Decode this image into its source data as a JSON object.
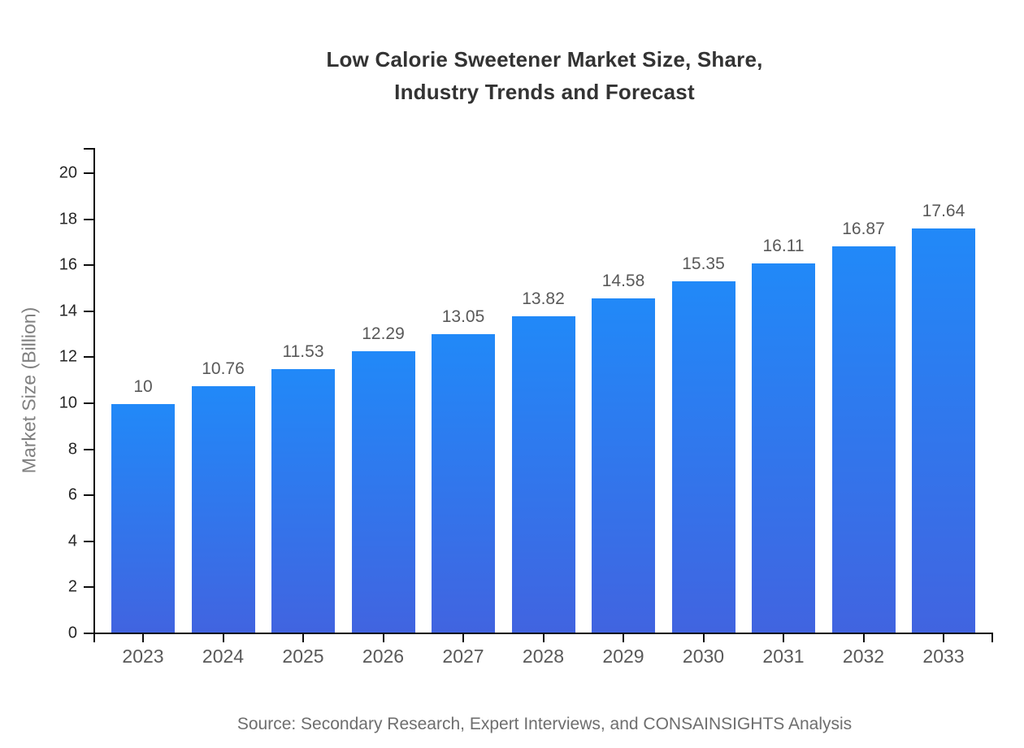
{
  "chart_data": {
    "type": "bar",
    "title": "Low Calorie Sweetener Market Size, Share, Industry Trends and Forecast",
    "title_lines": {
      "line1": "Low Calorie Sweetener Market Size, Share,",
      "line2": "Industry Trends and Forecast"
    },
    "categories": [
      "2023",
      "2024",
      "2025",
      "2026",
      "2027",
      "2028",
      "2029",
      "2030",
      "2031",
      "2032",
      "2033"
    ],
    "values": [
      10,
      10.76,
      11.53,
      12.29,
      13.05,
      13.82,
      14.58,
      15.35,
      16.11,
      16.87,
      17.64
    ],
    "value_labels": [
      "10",
      "10.76",
      "11.53",
      "12.29",
      "13.05",
      "13.82",
      "14.58",
      "15.35",
      "16.11",
      "16.87",
      "17.64"
    ],
    "xlabel": "",
    "ylabel": "Market Size (Billion)",
    "ylim": [
      0,
      21.1
    ],
    "yticks": [
      0,
      2,
      4,
      6,
      8,
      10,
      12,
      14,
      16,
      18,
      20
    ],
    "grid": false,
    "legend": false,
    "colors": {
      "bar_gradient_top": "#2189F8",
      "bar_gradient_bottom": "#4164E0",
      "axis": "#0D0D0D",
      "title_text": "#333333",
      "ytick_text": "#262626",
      "xtick_text": "#595959",
      "value_label_text": "#595959",
      "ylabel_text": "#808080",
      "source_text": "#6E6E6E"
    }
  },
  "source": {
    "text": "Source: Secondary Research, Expert Interviews, and CONSAINSIGHTS Analysis"
  }
}
